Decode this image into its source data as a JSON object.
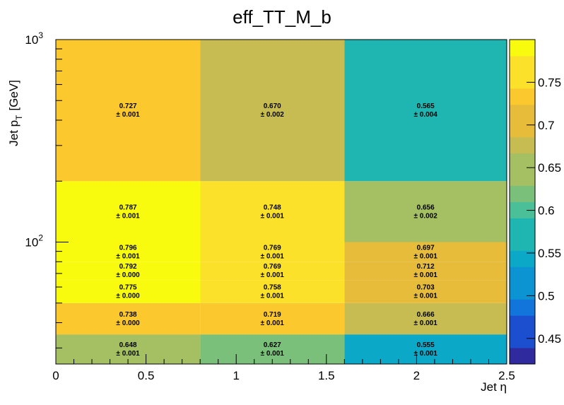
{
  "chart_data": {
    "type": "heatmap",
    "title": "eff_TT_M_b",
    "xlabel": "Jet η",
    "ylabel_main": "Jet p",
    "ylabel_sub": "T",
    "ylabel_unit": "[GeV]",
    "x_scale": "linear",
    "y_scale": "log",
    "xlim": [
      0,
      2.5
    ],
    "ylim": [
      25,
      1000
    ],
    "x_ticks": [
      {
        "value": 0,
        "label": "0"
      },
      {
        "value": 0.5,
        "label": "0.5"
      },
      {
        "value": 1,
        "label": "1"
      },
      {
        "value": 1.5,
        "label": "1.5"
      },
      {
        "value": 2,
        "label": "2"
      },
      {
        "value": 2.5,
        "label": "2.5"
      }
    ],
    "y_ticks": [
      {
        "value": 100,
        "base": "10",
        "exp": "2"
      },
      {
        "value": 1000,
        "base": "10",
        "exp": "3"
      }
    ],
    "x_edges": [
      0,
      0.8,
      1.6,
      2.5
    ],
    "y_edges": [
      25,
      35,
      50,
      65,
      80,
      100,
      200,
      1000
    ],
    "cells": [
      [
        "0.648",
        "0.627",
        "0.555"
      ],
      [
        "0.738",
        "0.719",
        "0.666"
      ],
      [
        "0.775",
        "0.758",
        "0.703"
      ],
      [
        "0.792",
        "0.769",
        "0.712"
      ],
      [
        "0.796",
        "0.769",
        "0.697"
      ],
      [
        "0.787",
        "0.748",
        "0.656"
      ],
      [
        "0.727",
        "0.670",
        "0.565"
      ]
    ],
    "errors": [
      [
        "± 0.001",
        "± 0.001",
        "± 0.001"
      ],
      [
        "± 0.000",
        "± 0.001",
        "± 0.001"
      ],
      [
        "± 0.000",
        "± 0.001",
        "± 0.001"
      ],
      [
        "± 0.000",
        "± 0.001",
        "± 0.001"
      ],
      [
        "± 0.001",
        "± 0.001",
        "± 0.001"
      ],
      [
        "± 0.001",
        "± 0.001",
        "± 0.002"
      ],
      [
        "± 0.001",
        "± 0.002",
        "± 0.004"
      ]
    ],
    "zlim": [
      0.42,
      0.8
    ],
    "colorbar_ticks": [
      {
        "value": 0.45,
        "label": "0.45"
      },
      {
        "value": 0.5,
        "label": "0.5"
      },
      {
        "value": 0.55,
        "label": "0.55"
      },
      {
        "value": 0.6,
        "label": "0.6"
      },
      {
        "value": 0.65,
        "label": "0.65"
      },
      {
        "value": 0.7,
        "label": "0.7"
      },
      {
        "value": 0.75,
        "label": "0.75"
      }
    ],
    "colorbar_levels": 20,
    "palette": [
      "#2f2a9e",
      "#1b4fd0",
      "#1175dc",
      "#0c94d2",
      "#0ca8c8",
      "#1fb6b2",
      "#4bbf98",
      "#7abf7a",
      "#a5bf63",
      "#c7bc52",
      "#e8bc3b",
      "#fbc92e",
      "#fce12a",
      "#f9fb0e"
    ]
  }
}
